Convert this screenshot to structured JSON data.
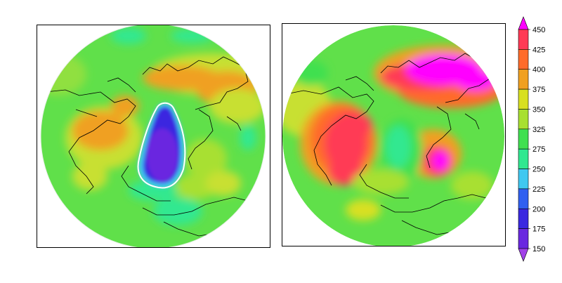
{
  "colorbar": {
    "labels": [
      "450",
      "425",
      "400",
      "375",
      "350",
      "325",
      "275",
      "250",
      "225",
      "200",
      "175",
      "150"
    ],
    "colors": [
      "#ff00ff",
      "#ff3a55",
      "#ff6b2a",
      "#f0a020",
      "#d8e020",
      "#a8e030",
      "#40e050",
      "#30e890",
      "#40c8f0",
      "#3060f0",
      "#3a28e0",
      "#6a28e0",
      "#a040e8"
    ]
  },
  "maps": {
    "left": {
      "base_color": "#60e04a"
    },
    "right": {
      "base_color": "#60e04a"
    }
  }
}
